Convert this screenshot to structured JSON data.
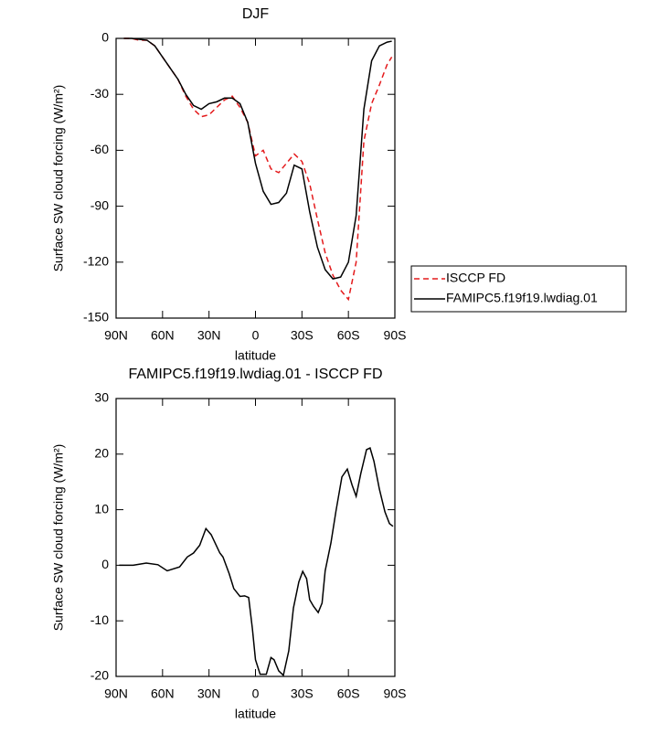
{
  "chart_data": [
    {
      "type": "line",
      "title": "DJF",
      "xlabel": "latitude",
      "ylabel": "Surface SW cloud forcing (W/m²)",
      "x": [
        85,
        80,
        75,
        70,
        65,
        60,
        55,
        50,
        45,
        40,
        35,
        30,
        25,
        20,
        15,
        10,
        5,
        0,
        -5,
        -10,
        -15,
        -20,
        -25,
        -30,
        -35,
        -40,
        -45,
        -50,
        -55,
        -60,
        -65,
        -70,
        -75,
        -80,
        -85,
        -88
      ],
      "series": [
        {
          "name": "ISCCP FD",
          "color": "#e41a1c",
          "dashed": true,
          "values": [
            0,
            0,
            -1,
            -1,
            -4,
            -10,
            -16,
            -22,
            -31,
            -38,
            -42,
            -41,
            -37,
            -33,
            -31,
            -37,
            -45,
            -63,
            -60,
            -70,
            -72,
            -67,
            -62,
            -66,
            -78,
            -97,
            -115,
            -127,
            -135,
            -140,
            -120,
            -55,
            -35,
            -25,
            -14,
            -10
          ]
        },
        {
          "name": "FAMIPC5.f19f19.lwdiag.01",
          "color": "#000000",
          "dashed": false,
          "values": [
            0,
            0,
            -0.5,
            -1,
            -4,
            -10,
            -16,
            -22,
            -30,
            -36,
            -38,
            -35,
            -34,
            -32,
            -32,
            -35,
            -45,
            -67,
            -82,
            -89,
            -88,
            -83,
            -68,
            -70,
            -93,
            -112,
            -124,
            -129,
            -128,
            -120,
            -95,
            -38,
            -12,
            -4,
            -2,
            -1.5
          ]
        }
      ],
      "xlim": [
        90,
        -90
      ],
      "xticks": [
        {
          "value": 90,
          "label": "90N"
        },
        {
          "value": 60,
          "label": "60N"
        },
        {
          "value": 30,
          "label": "30N"
        },
        0,
        {
          "value": -30,
          "label": "30S"
        },
        {
          "value": -60,
          "label": "60S"
        },
        {
          "value": -90,
          "label": "90S"
        }
      ],
      "ylim": [
        -150,
        0
      ],
      "yticks": [
        0,
        -30,
        -60,
        -90,
        -120,
        -150
      ]
    },
    {
      "type": "line",
      "title": "FAMIPC5.f19f19.lwdiag.01 - ISCCP FD",
      "xlabel": "latitude",
      "ylabel": "Surface SW cloud forcing (W/m²)",
      "x": [
        88,
        79,
        70.5,
        63,
        57,
        49,
        44,
        40,
        36,
        32,
        28.6,
        23,
        21,
        17,
        14,
        10,
        7,
        4.4,
        2,
        0,
        -3,
        -7,
        -10,
        -12,
        -15,
        -18,
        -21.5,
        -24.5,
        -28,
        -30.5,
        -33,
        -35,
        -37.5,
        -40.5,
        -43,
        -45,
        -48.7,
        -52,
        -55.8,
        -59.3,
        -62.3,
        -65,
        -68,
        -71.7,
        -74,
        -76.5,
        -80,
        -83.6,
        -86.5,
        -88.8
      ],
      "values": [
        0,
        0,
        0.4,
        0.1,
        -1,
        -0.3,
        1.5,
        2.2,
        3.6,
        6.6,
        5.5,
        2.2,
        1.5,
        -1.5,
        -4.2,
        -5.6,
        -5.5,
        -5.8,
        -11.4,
        -17,
        -19.6,
        -19.6,
        -16.6,
        -17,
        -19,
        -19.8,
        -15.4,
        -7.7,
        -3,
        -1.1,
        -2.4,
        -6.2,
        -7.4,
        -8.5,
        -6.8,
        -1,
        4,
        9.8,
        15.9,
        17.3,
        14.5,
        12.4,
        16.5,
        20.8,
        21.1,
        18.7,
        13.7,
        9.6,
        7.5,
        7
      ],
      "color": "#000000",
      "xlim": [
        90,
        -90
      ],
      "xticks": [
        {
          "value": 90,
          "label": "90N"
        },
        {
          "value": 60,
          "label": "60N"
        },
        {
          "value": 30,
          "label": "30N"
        },
        0,
        {
          "value": -30,
          "label": "30S"
        },
        {
          "value": -60,
          "label": "60S"
        },
        {
          "value": -90,
          "label": "90S"
        }
      ],
      "ylim": [
        -20,
        30
      ],
      "yticks": [
        30,
        20,
        10,
        0,
        -10,
        -20
      ]
    }
  ]
}
